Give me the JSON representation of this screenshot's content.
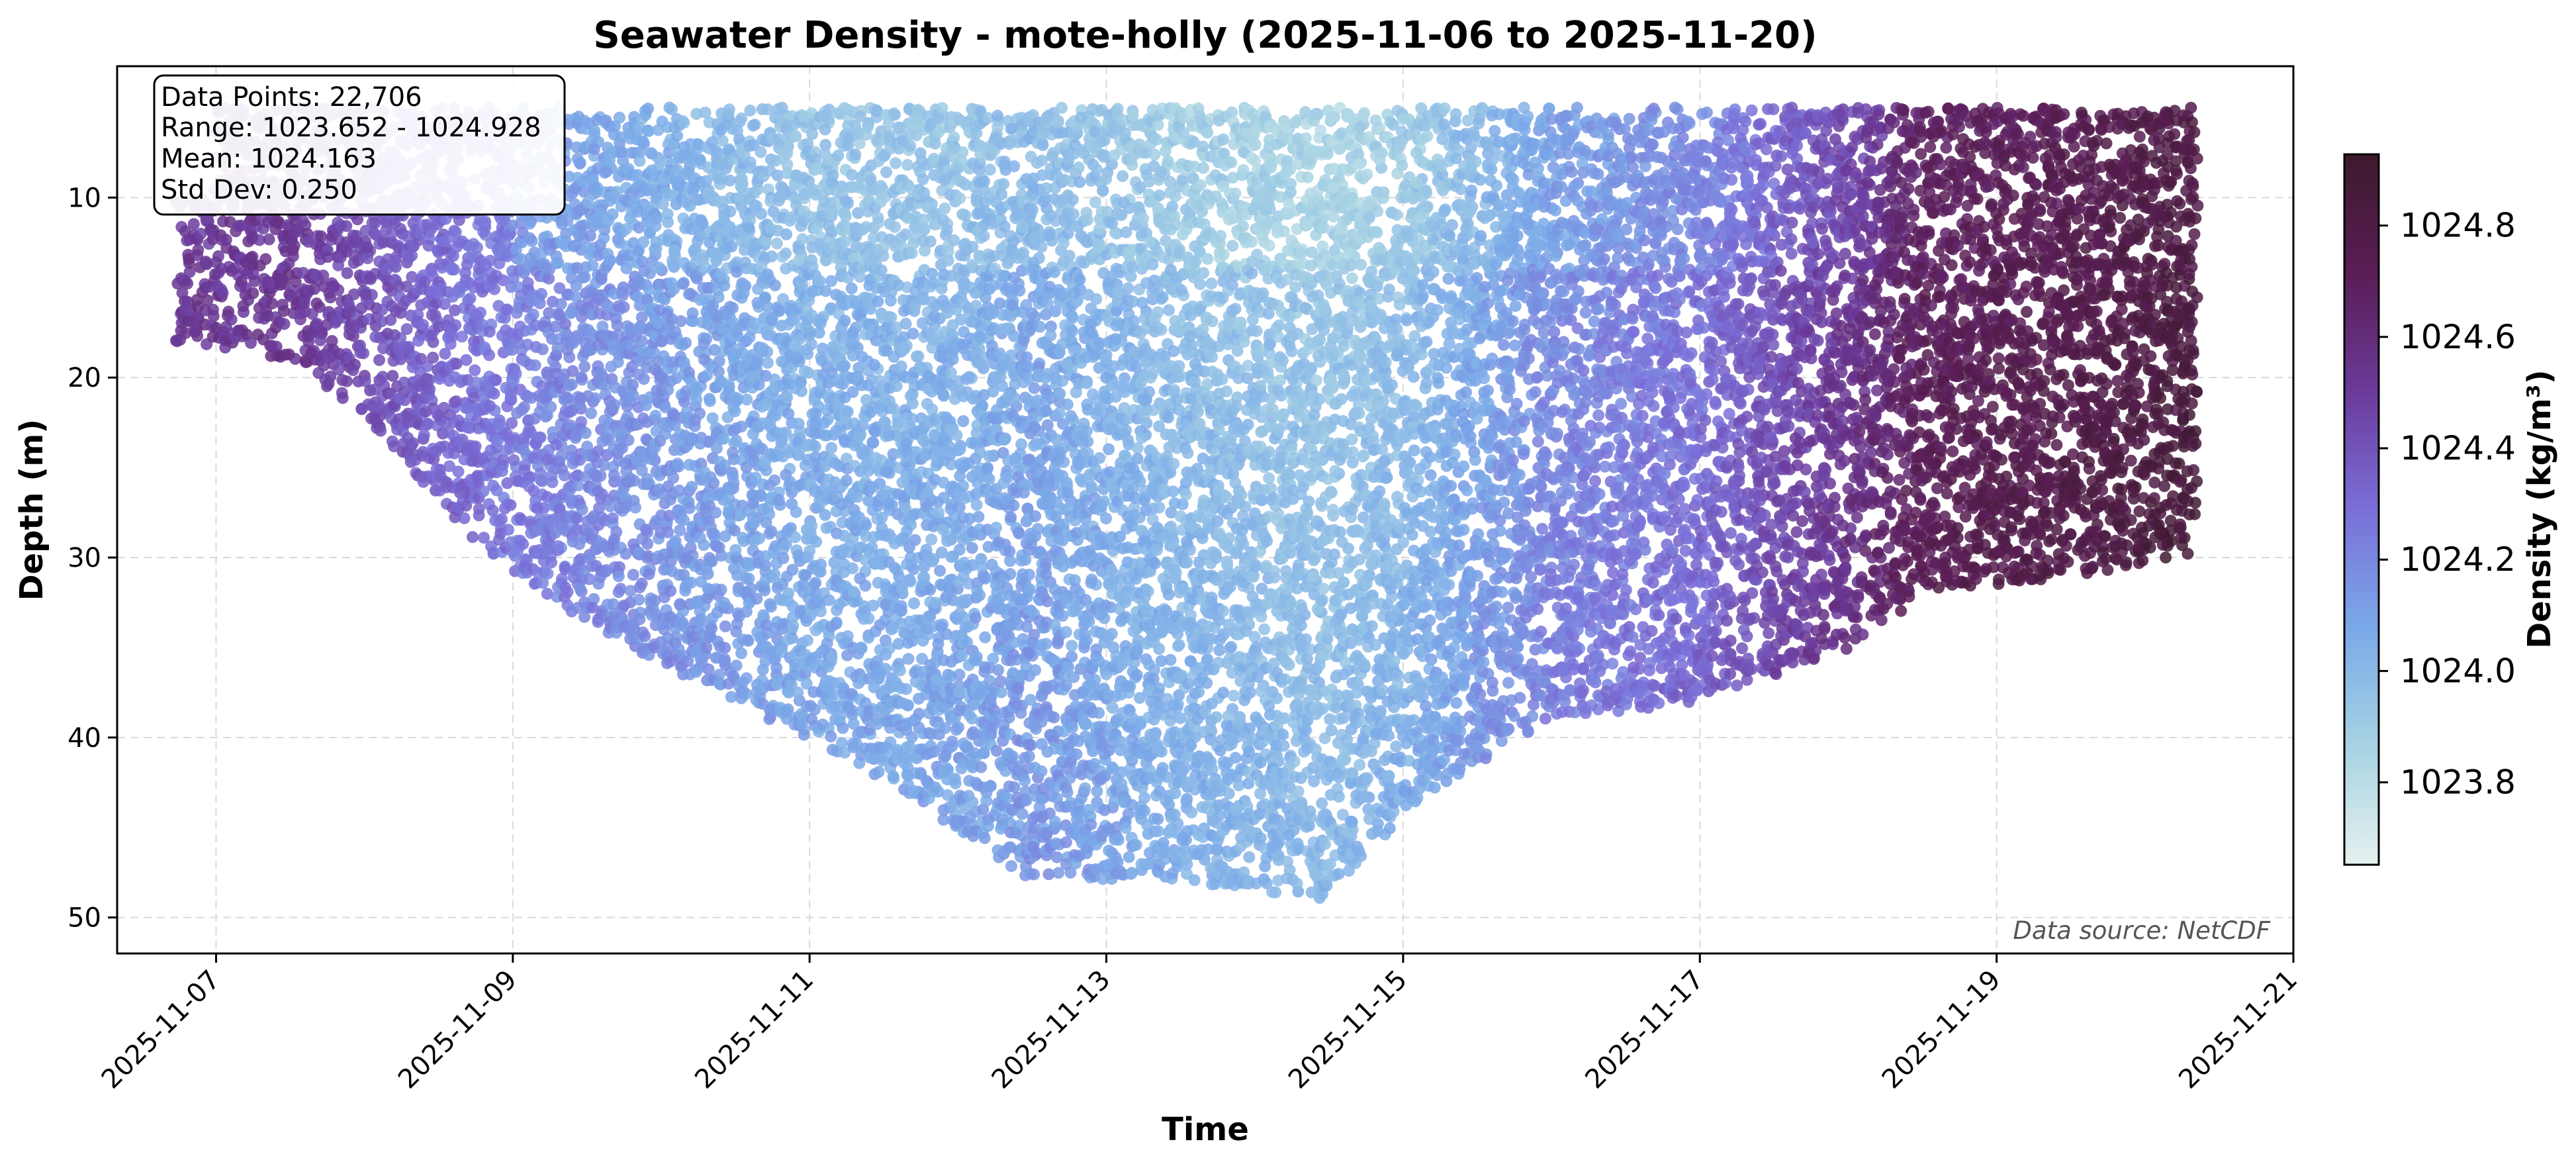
{
  "chart_data": {
    "type": "scatter",
    "title": "Seawater Density - mote-holly (2025-11-06 to 2025-11-20)",
    "xlabel": "Time",
    "ylabel": "Depth (m)",
    "colorbar_label": "Density (kg/m³)",
    "x_axis": {
      "type": "date",
      "range": [
        "2025-11-06 08:00",
        "2025-11-21 00:00"
      ],
      "ticks": [
        "2025-11-07",
        "2025-11-09",
        "2025-11-11",
        "2025-11-13",
        "2025-11-15",
        "2025-11-17",
        "2025-11-19",
        "2025-11-21"
      ]
    },
    "y_axis": {
      "inverted": true,
      "range": [
        52,
        2.7
      ],
      "ticks": [
        10,
        20,
        30,
        40,
        50
      ]
    },
    "colorbar": {
      "range": [
        1023.652,
        1024.928
      ],
      "ticks": [
        "1023.8",
        "1024.0",
        "1024.2",
        "1024.4",
        "1024.6",
        "1024.8"
      ],
      "colors": [
        "#e6f1ef",
        "#a7d3e3",
        "#7aa9e8",
        "#7a6fd8",
        "#6b3a9a",
        "#5a1d55",
        "#3d1a2e"
      ]
    },
    "grid": true,
    "stats": {
      "lines": [
        "Data Points: 22,706",
        "Range: 1023.652 - 1024.928",
        "Mean: 1024.163",
        "Std Dev: 0.250"
      ]
    },
    "source_note": "Data source: NetCDF",
    "profile_envelope": [
      {
        "date": "2025-11-06 18:00",
        "max_depth": 18,
        "density": 1024.55
      },
      {
        "date": "2025-11-07 12:00",
        "max_depth": 19,
        "density": 1024.55
      },
      {
        "date": "2025-11-08 00:00",
        "max_depth": 22,
        "density": 1024.45
      },
      {
        "date": "2025-11-08 12:00",
        "max_depth": 27,
        "density": 1024.35
      },
      {
        "date": "2025-11-09 00:00",
        "max_depth": 31,
        "density": 1024.25
      },
      {
        "date": "2025-11-10 00:00",
        "max_depth": 36,
        "density": 1024.15
      },
      {
        "date": "2025-11-11 00:00",
        "max_depth": 40,
        "density": 1024.05
      },
      {
        "date": "2025-11-12 00:00",
        "max_depth": 45,
        "density": 1024.05
      },
      {
        "date": "2025-11-12 12:00",
        "max_depth": 48,
        "density": 1024.1
      },
      {
        "date": "2025-11-13 12:00",
        "max_depth": 48,
        "density": 1024.0
      },
      {
        "date": "2025-11-14 12:00",
        "max_depth": 49,
        "density": 1023.95
      },
      {
        "date": "2025-11-15 00:00",
        "max_depth": 44,
        "density": 1024.0
      },
      {
        "date": "2025-11-16 00:00",
        "max_depth": 39,
        "density": 1024.2
      },
      {
        "date": "2025-11-17 00:00",
        "max_depth": 38,
        "density": 1024.3
      },
      {
        "date": "2025-11-18 00:00",
        "max_depth": 35,
        "density": 1024.55
      },
      {
        "date": "2025-11-18 12:00",
        "max_depth": 32,
        "density": 1024.72
      },
      {
        "date": "2025-11-19 12:00",
        "max_depth": 31,
        "density": 1024.78
      },
      {
        "date": "2025-11-20 08:00",
        "max_depth": 30,
        "density": 1024.85
      }
    ]
  }
}
